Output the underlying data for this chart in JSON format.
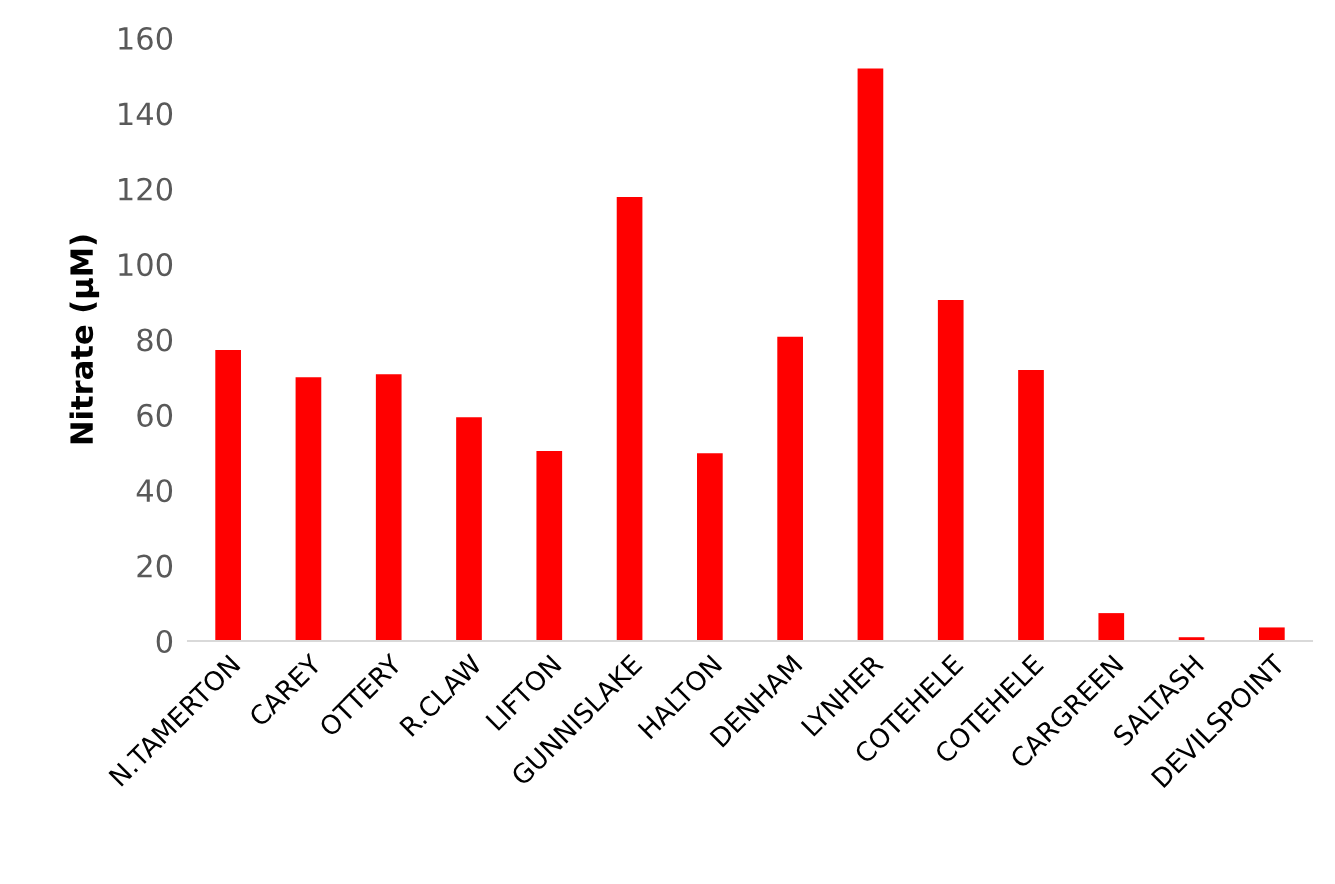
{
  "chart_data": {
    "type": "bar",
    "ylabel": "Nitrate (µM)",
    "categories": [
      "N.TAMERTON",
      "CAREY",
      "OTTERY",
      "R.CLAW",
      "LIFTON",
      "GUNNISLAKE",
      "HALTON",
      "DENHAM",
      "LYNHER",
      "COTEHELE",
      "COTEHELE",
      "CARGREEN",
      "SALTASH",
      "DEVILSPOINT"
    ],
    "values": [
      77.2,
      70.0,
      70.8,
      59.4,
      50.4,
      117.8,
      49.8,
      80.7,
      151.9,
      90.5,
      71.9,
      7.4,
      1.0,
      3.6
    ],
    "color": "#ff0000",
    "ylim": [
      0,
      160
    ],
    "yticks": [
      0,
      20,
      40,
      60,
      80,
      100,
      120,
      140,
      160
    ],
    "grid": false,
    "legend": false
  }
}
